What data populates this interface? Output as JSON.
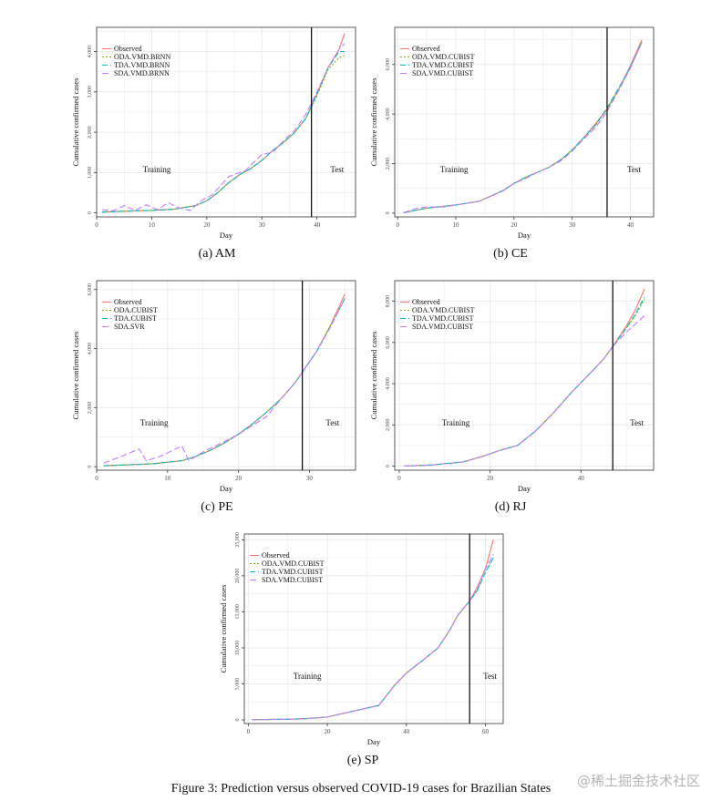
{
  "figure_caption": "Figure 3: Prediction versus observed COVID-19 cases for Brazilian States",
  "watermark": "@稀土掘金技术社区",
  "colors": {
    "observed": "#f8766d",
    "oda": "#7cae00",
    "tda": "#00bfc4",
    "sda": "#c77cff",
    "vline": "#000000",
    "grid": "#ebebeb",
    "panel_border": "#333333"
  },
  "chart_data": [
    {
      "type": "line",
      "caption": "(a) AM",
      "xlabel": "Day",
      "ylabel": "Cumulative confirmed cases",
      "training_label": "Training",
      "test_label": "Test",
      "split_day": 39,
      "xlim": [
        0,
        47
      ],
      "ylim": [
        -100,
        4600
      ],
      "xticks": [
        0,
        10,
        20,
        30,
        40
      ],
      "yticks": [
        0,
        1000,
        2000,
        3000,
        4000
      ],
      "ytick_labels": [
        "0",
        "1,000",
        "2,000",
        "3,000",
        "4,000"
      ],
      "legend": [
        "Observed",
        "ODA.VMD.BRNN",
        "TDA.VMD.BRNN",
        "SDA.VMD.BRNN"
      ],
      "series": [
        {
          "name": "Observed",
          "x": [
            1,
            5,
            10,
            14,
            18,
            20,
            22,
            24,
            26,
            28,
            30,
            32,
            34,
            36,
            38,
            40,
            42,
            44,
            45
          ],
          "y": [
            20,
            40,
            60,
            90,
            180,
            300,
            500,
            750,
            950,
            1100,
            1300,
            1550,
            1750,
            2000,
            2350,
            2950,
            3600,
            4050,
            4450
          ]
        },
        {
          "name": "ODA.VMD.BRNN",
          "x": [
            1,
            5,
            10,
            14,
            18,
            20,
            22,
            24,
            26,
            28,
            30,
            32,
            34,
            36,
            38,
            40,
            42,
            44,
            45
          ],
          "y": [
            20,
            40,
            60,
            90,
            180,
            300,
            500,
            750,
            950,
            1100,
            1300,
            1550,
            1750,
            2000,
            2350,
            2900,
            3550,
            3850,
            3900
          ]
        },
        {
          "name": "TDA.VMD.BRNN",
          "x": [
            1,
            5,
            10,
            14,
            18,
            20,
            22,
            24,
            26,
            28,
            30,
            32,
            34,
            36,
            38,
            40,
            42,
            44,
            45
          ],
          "y": [
            20,
            40,
            60,
            90,
            180,
            300,
            500,
            750,
            950,
            1100,
            1300,
            1550,
            1750,
            2000,
            2350,
            2950,
            3600,
            4000,
            4000
          ]
        },
        {
          "name": "SDA.VMD.BRNN",
          "x": [
            1,
            3,
            5,
            7,
            9,
            11,
            13,
            15,
            17,
            19,
            21,
            24,
            27,
            30,
            32,
            34,
            36,
            38,
            40,
            42,
            44,
            45
          ],
          "y": [
            80,
            50,
            180,
            60,
            200,
            80,
            250,
            120,
            60,
            300,
            450,
            900,
            1050,
            1450,
            1500,
            1800,
            2050,
            2450,
            3000,
            3600,
            4050,
            4200
          ]
        }
      ]
    },
    {
      "type": "line",
      "caption": "(b) CE",
      "xlabel": "Day",
      "ylabel": "Cumulative confirmed cases",
      "training_label": "Training",
      "test_label": "Test",
      "split_day": 36,
      "xlim": [
        -0.5,
        44
      ],
      "ylim": [
        -150,
        7500
      ],
      "xticks": [
        0,
        10,
        20,
        30,
        40
      ],
      "yticks": [
        0,
        2000,
        4000,
        6000
      ],
      "ytick_labels": [
        "0",
        "2,000",
        "4,000",
        "6,000"
      ],
      "legend": [
        "Observed",
        "ODA.VMD.CUBIST",
        "TDA.VMD.CUBIST",
        "SDA.VMD.CUBIST"
      ],
      "series": [
        {
          "name": "Observed",
          "x": [
            1,
            5,
            10,
            14,
            18,
            20,
            22,
            24,
            26,
            28,
            30,
            32,
            34,
            36,
            38,
            40,
            42
          ],
          "y": [
            20,
            200,
            330,
            480,
            900,
            1200,
            1450,
            1650,
            1850,
            2150,
            2550,
            3050,
            3600,
            4200,
            5000,
            5950,
            7000
          ]
        },
        {
          "name": "ODA.VMD.CUBIST",
          "x": [
            1,
            5,
            10,
            14,
            18,
            20,
            22,
            24,
            26,
            28,
            30,
            32,
            34,
            36,
            38,
            40,
            42
          ],
          "y": [
            20,
            200,
            330,
            480,
            900,
            1200,
            1450,
            1650,
            1850,
            2150,
            2550,
            3050,
            3550,
            4200,
            5000,
            5900,
            6950
          ]
        },
        {
          "name": "TDA.VMD.CUBIST",
          "x": [
            1,
            5,
            10,
            14,
            18,
            20,
            22,
            24,
            26,
            28,
            30,
            32,
            34,
            36,
            38,
            40,
            42
          ],
          "y": [
            20,
            200,
            330,
            480,
            900,
            1200,
            1450,
            1650,
            1850,
            2150,
            2550,
            3050,
            3550,
            4250,
            5050,
            5900,
            6900
          ]
        },
        {
          "name": "SDA.VMD.CUBIST",
          "x": [
            1,
            3,
            5,
            8,
            10,
            14,
            18,
            20,
            22,
            24,
            26,
            28,
            30,
            32,
            34,
            36,
            38,
            40,
            42
          ],
          "y": [
            20,
            180,
            250,
            250,
            330,
            480,
            880,
            1200,
            1400,
            1650,
            1850,
            2100,
            2500,
            3000,
            3450,
            4100,
            4950,
            5850,
            6900
          ]
        }
      ]
    },
    {
      "type": "line",
      "caption": "(c) PE",
      "xlabel": "Day",
      "ylabel": "Cumulative confirmed cases",
      "training_label": "Training",
      "test_label": "Test",
      "split_day": 29,
      "xlim": [
        0,
        36.5
      ],
      "ylim": [
        -120,
        6300
      ],
      "xticks": [
        0,
        10,
        20,
        30
      ],
      "yticks": [
        0,
        2000,
        4000,
        6000
      ],
      "ytick_labels": [
        "0",
        "2,000",
        "4,000",
        "6,000"
      ],
      "legend": [
        "Observed",
        "ODA.CUBIST",
        "TDA.CUBIST",
        "SDA.SVR"
      ],
      "series": [
        {
          "name": "Observed",
          "x": [
            1,
            4,
            8,
            12,
            14,
            16,
            18,
            20,
            22,
            24,
            26,
            28,
            29,
            31,
            33,
            35
          ],
          "y": [
            30,
            60,
            100,
            200,
            350,
            550,
            800,
            1100,
            1450,
            1850,
            2300,
            2850,
            3200,
            3900,
            4800,
            5850
          ]
        },
        {
          "name": "ODA.CUBIST",
          "x": [
            1,
            4,
            8,
            12,
            14,
            16,
            18,
            20,
            22,
            24,
            26,
            28,
            29,
            31,
            33,
            35
          ],
          "y": [
            30,
            60,
            100,
            200,
            350,
            550,
            800,
            1100,
            1450,
            1850,
            2300,
            2850,
            3200,
            3900,
            4800,
            5700
          ]
        },
        {
          "name": "TDA.CUBIST",
          "x": [
            1,
            4,
            8,
            12,
            14,
            16,
            18,
            20,
            22,
            24,
            26,
            28,
            29,
            31,
            33,
            35
          ],
          "y": [
            30,
            60,
            100,
            200,
            350,
            550,
            800,
            1100,
            1450,
            1850,
            2300,
            2850,
            3200,
            3900,
            4750,
            5700
          ]
        },
        {
          "name": "SDA.SVR",
          "x": [
            1,
            3,
            6,
            7,
            9,
            12,
            13,
            15,
            18,
            20,
            22,
            24,
            26,
            28,
            29,
            31,
            33,
            35
          ],
          "y": [
            120,
            300,
            600,
            200,
            350,
            700,
            200,
            500,
            850,
            1100,
            1400,
            1700,
            2300,
            2850,
            3200,
            3900,
            4750,
            5700
          ]
        }
      ]
    },
    {
      "type": "line",
      "caption": "(d) RJ",
      "xlabel": "Day",
      "ylabel": "Cumulative confirmed cases",
      "training_label": "Training",
      "test_label": "Test",
      "split_day": 47,
      "xlim": [
        -1,
        56
      ],
      "ylim": [
        -200,
        9000
      ],
      "xticks": [
        0,
        20,
        40
      ],
      "yticks": [
        0,
        2000,
        4000,
        6000,
        8000
      ],
      "ytick_labels": [
        "0",
        "2,000",
        "4,000",
        "6,000",
        "8,000"
      ],
      "legend": [
        "Observed",
        "ODA.VMD.CUBIST",
        "TDA.VMD.CUBIST",
        "SDA.VMD.CUBIST"
      ],
      "series": [
        {
          "name": "Observed",
          "x": [
            1,
            7,
            14,
            18,
            22,
            26,
            30,
            34,
            38,
            42,
            45,
            47,
            50,
            52,
            54
          ],
          "y": [
            0,
            50,
            200,
            450,
            750,
            1000,
            1700,
            2600,
            3600,
            4500,
            5200,
            5800,
            6800,
            7600,
            8600
          ]
        },
        {
          "name": "ODA.VMD.CUBIST",
          "x": [
            1,
            7,
            14,
            18,
            22,
            26,
            30,
            34,
            38,
            42,
            45,
            47,
            50,
            52,
            54
          ],
          "y": [
            0,
            50,
            200,
            450,
            750,
            1000,
            1700,
            2600,
            3600,
            4500,
            5200,
            5800,
            6700,
            7300,
            8100
          ]
        },
        {
          "name": "TDA.VMD.CUBIST",
          "x": [
            1,
            7,
            14,
            18,
            22,
            26,
            30,
            34,
            38,
            42,
            45,
            47,
            50,
            52,
            54
          ],
          "y": [
            0,
            50,
            200,
            450,
            750,
            1000,
            1700,
            2600,
            3600,
            4500,
            5200,
            5800,
            6700,
            7400,
            8200
          ]
        },
        {
          "name": "SDA.VMD.CUBIST",
          "x": [
            1,
            7,
            14,
            18,
            22,
            26,
            30,
            34,
            38,
            42,
            45,
            47,
            50,
            52,
            54
          ],
          "y": [
            0,
            50,
            200,
            450,
            750,
            1000,
            1700,
            2600,
            3600,
            4500,
            5200,
            5800,
            6500,
            6900,
            7300
          ]
        }
      ]
    },
    {
      "type": "line",
      "caption": "(e) SP",
      "xlabel": "Day",
      "ylabel": "Cumulative confirmed cases",
      "training_label": "Training",
      "test_label": "Test",
      "split_day": 56,
      "xlim": [
        -1,
        64.5
      ],
      "ylim": [
        -500,
        25800
      ],
      "xticks": [
        0,
        20,
        40,
        60
      ],
      "yticks": [
        0,
        5000,
        10000,
        15000,
        20000,
        25000
      ],
      "ytick_labels": [
        "0",
        "5,000",
        "10,000",
        "15,000",
        "20,000",
        "25,000"
      ],
      "legend": [
        "Observed",
        "ODA.VMD.CUBIST",
        "TDA.VMD.CUBIST",
        "SDA.VMD.CUBIST"
      ],
      "series": [
        {
          "name": "Observed",
          "x": [
            1,
            10,
            15,
            20,
            24,
            28,
            33,
            37,
            40,
            44,
            48,
            51,
            53,
            56,
            58,
            60,
            62
          ],
          "y": [
            50,
            100,
            200,
            400,
            900,
            1400,
            2000,
            4800,
            6500,
            8200,
            10000,
            12500,
            14500,
            16500,
            18500,
            21000,
            25000
          ]
        },
        {
          "name": "ODA.VMD.CUBIST",
          "x": [
            1,
            10,
            15,
            20,
            24,
            28,
            33,
            37,
            40,
            44,
            48,
            51,
            53,
            56,
            58,
            60,
            62
          ],
          "y": [
            50,
            100,
            200,
            400,
            900,
            1400,
            2000,
            4800,
            6500,
            8200,
            10000,
            12500,
            14500,
            16500,
            18000,
            20500,
            22500
          ]
        },
        {
          "name": "TDA.VMD.CUBIST",
          "x": [
            1,
            10,
            15,
            20,
            24,
            28,
            33,
            37,
            40,
            44,
            48,
            51,
            53,
            56,
            58,
            60,
            62
          ],
          "y": [
            50,
            100,
            200,
            400,
            900,
            1400,
            2000,
            4800,
            6500,
            8200,
            10000,
            12500,
            14500,
            16500,
            18000,
            20500,
            22500
          ]
        },
        {
          "name": "SDA.VMD.CUBIST",
          "x": [
            1,
            10,
            15,
            20,
            24,
            28,
            33,
            37,
            40,
            44,
            48,
            51,
            53,
            56,
            58,
            60,
            62
          ],
          "y": [
            50,
            100,
            200,
            400,
            900,
            1400,
            2000,
            4800,
            6500,
            8200,
            10000,
            12500,
            14500,
            16500,
            18300,
            21000,
            23000
          ]
        }
      ]
    }
  ]
}
